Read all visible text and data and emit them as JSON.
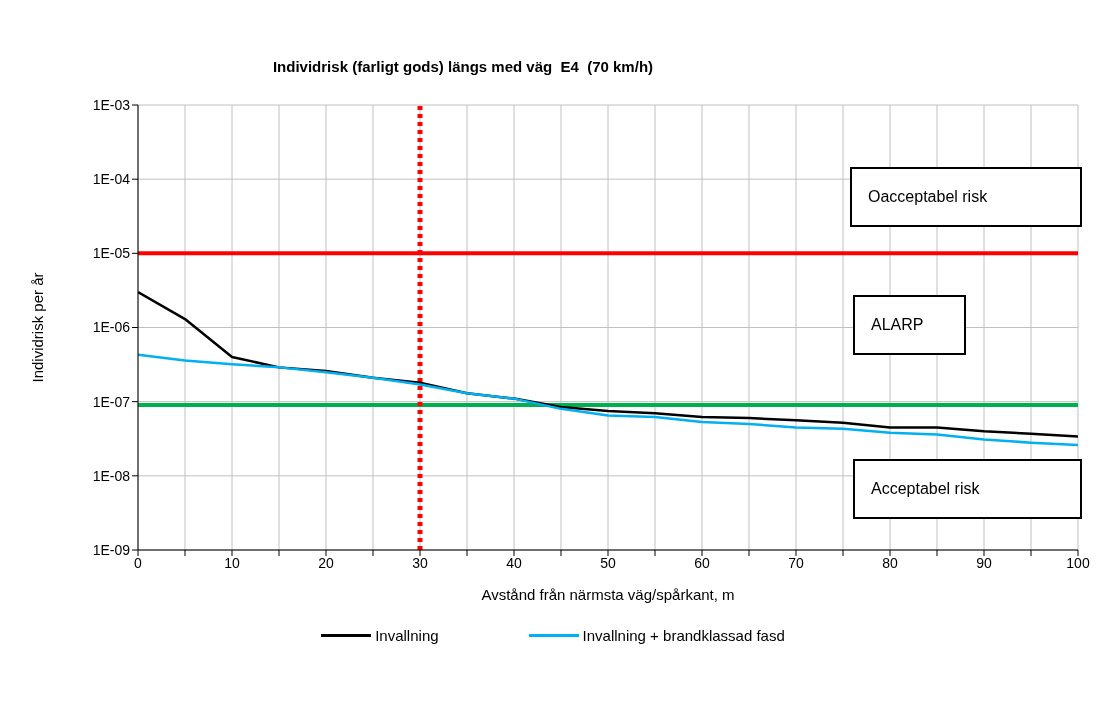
{
  "chart_data": {
    "type": "line",
    "title": "Individrisk (farligt gods) längs med väg  E4  (70 km/h)",
    "xlabel": "Avstånd från närmsta väg/spårkant, m",
    "ylabel": "Individrisk per år",
    "x": [
      0,
      5,
      10,
      15,
      20,
      25,
      30,
      35,
      40,
      45,
      50,
      55,
      60,
      65,
      70,
      75,
      80,
      85,
      90,
      95,
      100
    ],
    "series": [
      {
        "name": "Invallning",
        "color": "#000000",
        "values": [
          3e-06,
          1.3e-06,
          4e-07,
          2.9e-07,
          2.6e-07,
          2.1e-07,
          1.8e-07,
          1.3e-07,
          1.1e-07,
          8.5e-08,
          7.5e-08,
          7e-08,
          6.2e-08,
          6e-08,
          5.6e-08,
          5.2e-08,
          4.5e-08,
          4.5e-08,
          4e-08,
          3.7e-08,
          3.4e-08
        ]
      },
      {
        "name": "Invallning + brandklassad fasd",
        "color": "#00b0f0",
        "values": [
          4.3e-07,
          3.6e-07,
          3.2e-07,
          2.9e-07,
          2.5e-07,
          2.1e-07,
          1.7e-07,
          1.3e-07,
          1.1e-07,
          8e-08,
          6.5e-08,
          6.2e-08,
          5.3e-08,
          5e-08,
          4.5e-08,
          4.3e-08,
          3.8e-08,
          3.6e-08,
          3.1e-08,
          2.8e-08,
          2.6e-08
        ]
      }
    ],
    "xlim": [
      0,
      100
    ],
    "xticks": [
      0,
      {
        "value": 5,
        "label": null
      },
      10,
      {
        "value": 15,
        "label": null
      },
      20,
      {
        "value": 25,
        "label": null
      },
      30,
      {
        "value": 35,
        "label": null
      },
      40,
      {
        "value": 45,
        "label": null
      },
      50,
      {
        "value": 55,
        "label": null
      },
      60,
      {
        "value": 65,
        "label": null
      },
      70,
      {
        "value": 75,
        "label": null
      },
      80,
      {
        "value": 85,
        "label": null
      },
      90,
      {
        "value": 95,
        "label": null
      },
      100
    ],
    "ylim": [
      1e-09,
      0.001
    ],
    "yticks": [
      {
        "value": 1e-09,
        "label": "1E-09"
      },
      {
        "value": 1e-08,
        "label": "1E-08"
      },
      {
        "value": 1e-07,
        "label": "1E-07"
      },
      {
        "value": 1e-06,
        "label": "1E-06"
      },
      {
        "value": 1e-05,
        "label": "1E-05"
      },
      {
        "value": 0.0001,
        "label": "1E-04"
      },
      {
        "value": 0.001,
        "label": "1E-03"
      }
    ],
    "log": "y",
    "grid": true,
    "legend": "bottom",
    "marker": "none",
    "line_style": "solid",
    "ref_lines": [
      {
        "axis": "y",
        "value": 1e-05,
        "color": "#ff0000",
        "line_style": "solid"
      },
      {
        "axis": "y",
        "value": 9e-08,
        "color": "#00b050",
        "line_style": "solid"
      },
      {
        "axis": "x",
        "value": 30,
        "color": "#ff0000",
        "line_style": "dotted"
      }
    ],
    "annotations": [
      "Oacceptabel risk",
      "ALARP",
      "Acceptabel risk"
    ]
  }
}
